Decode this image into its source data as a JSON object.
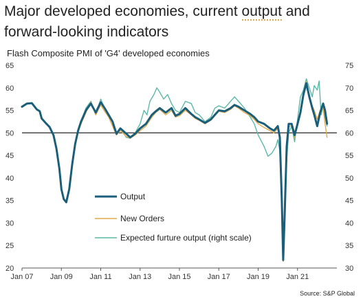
{
  "headline": {
    "title_prefix": "Major developed economies, current ",
    "title_highlight": "output",
    "title_suffix": " and forward-looking indicators"
  },
  "source": "Source: S&P Global",
  "colors": {
    "output": "#1a5e7a",
    "new_orders": "#e2a94a",
    "expected_output": "#5cb8a6",
    "highlight_underline": "#e2a94a",
    "axis_text": "#333333",
    "baseline": "#111111"
  },
  "chart_data": {
    "type": "line",
    "title": "Flash Composite PMI of 'G4' developed economies",
    "x_ticks": [
      "Jan 07",
      "Jan 09",
      "Jan 11",
      "Jan 13",
      "Jan 15",
      "Jan 17",
      "Jan 19",
      "Jan 21"
    ],
    "x_range": [
      2007.0,
      2023.0
    ],
    "ylim_left": [
      20,
      65
    ],
    "ylim_right": [
      30,
      75
    ],
    "y_ticks_left": [
      20,
      25,
      30,
      35,
      40,
      45,
      50,
      55,
      60,
      65
    ],
    "y_ticks_right": [
      30,
      35,
      40,
      45,
      50,
      55,
      60,
      65,
      70,
      75
    ],
    "reference_line_left": 50,
    "legend_position": "middle-left",
    "series": [
      {
        "name": "Output",
        "axis": "left",
        "line_width": "thick",
        "color_key": "output",
        "points": [
          [
            2007.0,
            55.8
          ],
          [
            2007.25,
            56.5
          ],
          [
            2007.5,
            56.6
          ],
          [
            2007.75,
            55.2
          ],
          [
            2007.9,
            54.8
          ],
          [
            2008.0,
            53.2
          ],
          [
            2008.2,
            52.2
          ],
          [
            2008.4,
            51.3
          ],
          [
            2008.6,
            49.5
          ],
          [
            2008.75,
            46.5
          ],
          [
            2008.9,
            42.0
          ],
          [
            2009.0,
            37.5
          ],
          [
            2009.12,
            35.3
          ],
          [
            2009.25,
            34.6
          ],
          [
            2009.4,
            37.5
          ],
          [
            2009.55,
            43.0
          ],
          [
            2009.7,
            47.5
          ],
          [
            2009.85,
            50.5
          ],
          [
            2010.0,
            52.5
          ],
          [
            2010.25,
            55.0
          ],
          [
            2010.5,
            56.5
          ],
          [
            2010.75,
            54.5
          ],
          [
            2011.0,
            56.8
          ],
          [
            2011.2,
            55.5
          ],
          [
            2011.4,
            54.0
          ],
          [
            2011.6,
            52.5
          ],
          [
            2011.8,
            49.8
          ],
          [
            2012.0,
            51.0
          ],
          [
            2012.3,
            49.8
          ],
          [
            2012.5,
            49.0
          ],
          [
            2012.75,
            49.8
          ],
          [
            2013.0,
            51.0
          ],
          [
            2013.3,
            52.0
          ],
          [
            2013.6,
            54.0
          ],
          [
            2013.8,
            54.8
          ],
          [
            2014.0,
            55.5
          ],
          [
            2014.3,
            54.5
          ],
          [
            2014.6,
            55.5
          ],
          [
            2014.8,
            53.8
          ],
          [
            2015.0,
            54.2
          ],
          [
            2015.3,
            55.5
          ],
          [
            2015.6,
            54.2
          ],
          [
            2015.8,
            53.5
          ],
          [
            2016.0,
            53.0
          ],
          [
            2016.3,
            52.2
          ],
          [
            2016.6,
            53.0
          ],
          [
            2016.8,
            54.0
          ],
          [
            2017.0,
            55.0
          ],
          [
            2017.3,
            54.8
          ],
          [
            2017.6,
            55.5
          ],
          [
            2017.8,
            56.2
          ],
          [
            2018.0,
            55.8
          ],
          [
            2018.3,
            55.0
          ],
          [
            2018.6,
            54.2
          ],
          [
            2018.8,
            53.5
          ],
          [
            2019.0,
            52.5
          ],
          [
            2019.3,
            52.0
          ],
          [
            2019.6,
            51.0
          ],
          [
            2019.8,
            50.5
          ],
          [
            2020.0,
            51.5
          ],
          [
            2020.1,
            49.0
          ],
          [
            2020.2,
            35.0
          ],
          [
            2020.27,
            21.8
          ],
          [
            2020.35,
            32.0
          ],
          [
            2020.45,
            47.0
          ],
          [
            2020.55,
            52.0
          ],
          [
            2020.7,
            52.0
          ],
          [
            2020.85,
            49.5
          ],
          [
            2021.0,
            52.0
          ],
          [
            2021.15,
            54.5
          ],
          [
            2021.3,
            58.5
          ],
          [
            2021.45,
            61.0
          ],
          [
            2021.6,
            58.0
          ],
          [
            2021.75,
            55.5
          ],
          [
            2021.85,
            54.0
          ],
          [
            2022.0,
            51.5
          ],
          [
            2022.15,
            54.5
          ],
          [
            2022.3,
            56.5
          ],
          [
            2022.4,
            55.0
          ],
          [
            2022.5,
            52.0
          ]
        ]
      },
      {
        "name": "New Orders",
        "axis": "left",
        "line_width": "thin",
        "color_key": "new_orders",
        "points": [
          [
            2009.8,
            50.0
          ],
          [
            2010.0,
            52.0
          ],
          [
            2010.25,
            54.5
          ],
          [
            2010.5,
            56.8
          ],
          [
            2010.75,
            54.0
          ],
          [
            2011.0,
            56.2
          ],
          [
            2011.2,
            54.8
          ],
          [
            2011.4,
            53.5
          ],
          [
            2011.6,
            51.5
          ],
          [
            2011.8,
            49.5
          ],
          [
            2012.0,
            50.5
          ],
          [
            2012.3,
            49.2
          ],
          [
            2012.5,
            48.8
          ],
          [
            2012.75,
            49.5
          ],
          [
            2013.0,
            50.5
          ],
          [
            2013.3,
            51.5
          ],
          [
            2013.6,
            53.5
          ],
          [
            2013.8,
            54.5
          ],
          [
            2014.0,
            55.2
          ],
          [
            2014.3,
            54.0
          ],
          [
            2014.6,
            55.0
          ],
          [
            2014.8,
            53.5
          ],
          [
            2015.0,
            53.8
          ],
          [
            2015.3,
            55.0
          ],
          [
            2015.6,
            54.0
          ],
          [
            2015.8,
            53.2
          ],
          [
            2016.0,
            52.8
          ],
          [
            2016.3,
            52.0
          ],
          [
            2016.6,
            52.8
          ],
          [
            2016.8,
            53.8
          ],
          [
            2017.0,
            54.8
          ],
          [
            2017.3,
            54.5
          ],
          [
            2017.6,
            55.2
          ],
          [
            2017.8,
            56.0
          ],
          [
            2018.0,
            55.5
          ],
          [
            2018.3,
            54.5
          ],
          [
            2018.6,
            53.8
          ],
          [
            2018.8,
            53.0
          ],
          [
            2019.0,
            52.0
          ],
          [
            2019.3,
            51.2
          ],
          [
            2019.6,
            50.5
          ],
          [
            2019.8,
            50.0
          ],
          [
            2020.0,
            51.0
          ],
          [
            2020.1,
            48.5
          ],
          [
            2020.2,
            34.0
          ],
          [
            2020.27,
            21.5
          ],
          [
            2020.35,
            30.5
          ],
          [
            2020.45,
            45.5
          ],
          [
            2020.55,
            51.5
          ],
          [
            2020.7,
            51.5
          ],
          [
            2020.85,
            49.0
          ],
          [
            2021.0,
            51.5
          ],
          [
            2021.15,
            54.5
          ],
          [
            2021.3,
            58.0
          ],
          [
            2021.45,
            61.5
          ],
          [
            2021.6,
            58.5
          ],
          [
            2021.75,
            56.0
          ],
          [
            2021.85,
            55.0
          ],
          [
            2022.0,
            53.0
          ],
          [
            2022.15,
            55.0
          ],
          [
            2022.3,
            55.5
          ],
          [
            2022.4,
            52.0
          ],
          [
            2022.5,
            49.0
          ]
        ]
      },
      {
        "name": "Expected furture output (right scale)",
        "axis": "right",
        "line_width": "thin",
        "color_key": "expected_output",
        "points": [
          [
            2009.8,
            60.0
          ],
          [
            2010.0,
            62.5
          ],
          [
            2010.25,
            65.5
          ],
          [
            2010.5,
            67.0
          ],
          [
            2010.75,
            64.0
          ],
          [
            2011.0,
            67.5
          ],
          [
            2011.2,
            65.5
          ],
          [
            2011.4,
            64.0
          ],
          [
            2011.6,
            62.5
          ],
          [
            2011.8,
            59.5
          ],
          [
            2012.0,
            61.0
          ],
          [
            2012.3,
            59.0
          ],
          [
            2012.5,
            58.8
          ],
          [
            2012.75,
            60.0
          ],
          [
            2013.0,
            62.0
          ],
          [
            2013.2,
            65.0
          ],
          [
            2013.35,
            64.0
          ],
          [
            2013.5,
            67.0
          ],
          [
            2013.7,
            68.5
          ],
          [
            2013.85,
            70.0
          ],
          [
            2014.0,
            69.0
          ],
          [
            2014.2,
            67.5
          ],
          [
            2014.4,
            68.5
          ],
          [
            2014.6,
            66.5
          ],
          [
            2014.8,
            65.0
          ],
          [
            2015.0,
            64.5
          ],
          [
            2015.3,
            67.0
          ],
          [
            2015.6,
            66.5
          ],
          [
            2015.8,
            64.5
          ],
          [
            2016.0,
            64.0
          ],
          [
            2016.3,
            62.5
          ],
          [
            2016.6,
            63.5
          ],
          [
            2016.8,
            65.5
          ],
          [
            2017.0,
            66.0
          ],
          [
            2017.3,
            65.5
          ],
          [
            2017.6,
            67.0
          ],
          [
            2017.8,
            68.0
          ],
          [
            2018.0,
            67.0
          ],
          [
            2018.3,
            65.5
          ],
          [
            2018.6,
            63.5
          ],
          [
            2018.8,
            62.0
          ],
          [
            2019.0,
            59.5
          ],
          [
            2019.3,
            57.0
          ],
          [
            2019.5,
            54.8
          ],
          [
            2019.7,
            55.5
          ],
          [
            2019.9,
            57.0
          ],
          [
            2020.0,
            58.5
          ],
          [
            2020.1,
            56.0
          ],
          [
            2020.2,
            45.0
          ],
          [
            2020.27,
            31.5
          ],
          [
            2020.35,
            42.0
          ],
          [
            2020.45,
            54.0
          ],
          [
            2020.55,
            60.0
          ],
          [
            2020.7,
            61.5
          ],
          [
            2020.85,
            58.0
          ],
          [
            2021.0,
            63.0
          ],
          [
            2021.15,
            68.0
          ],
          [
            2021.3,
            69.5
          ],
          [
            2021.45,
            72.0
          ],
          [
            2021.6,
            70.0
          ],
          [
            2021.75,
            68.0
          ],
          [
            2021.85,
            70.5
          ],
          [
            2022.0,
            69.5
          ],
          [
            2022.1,
            71.5
          ],
          [
            2022.2,
            64.0
          ],
          [
            2022.3,
            66.0
          ],
          [
            2022.4,
            63.5
          ],
          [
            2022.5,
            61.5
          ]
        ]
      }
    ]
  }
}
